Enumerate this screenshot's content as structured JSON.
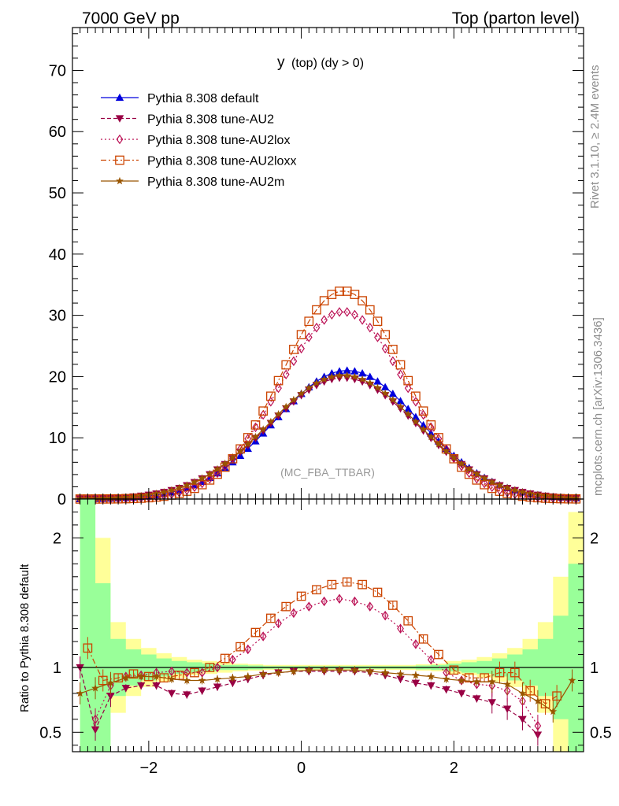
{
  "header": {
    "left": "7000 GeV pp",
    "right": "Top (parton level)"
  },
  "side_labels": {
    "rivet": "Rivet 3.1.10, ≥ 2.4M events",
    "mcplots": "mcplots.cern.ch [arXiv:1306.3436]"
  },
  "chart_data": [
    {
      "type": "line",
      "title_main": "y",
      "title_rest": "(top) (dy > 0)",
      "watermark": "(MC_FBA_TTBAR)",
      "xlim": [
        -3.0,
        3.7
      ],
      "ylim": [
        0,
        77
      ],
      "yticks": [
        0,
        10,
        20,
        30,
        40,
        50,
        60,
        70
      ],
      "xticks": [
        -2,
        0,
        2
      ],
      "legend_position": "top-left",
      "series": [
        {
          "name": "Pythia 8.308 default",
          "color": "#0000dd",
          "marker": "triangle-up",
          "dash": "solid",
          "peak": 21.0,
          "center": 0.6,
          "sigma": 0.95
        },
        {
          "name": "Pythia 8.308 tune-AU2",
          "color": "#990044",
          "marker": "triangle-down",
          "dash": "dashed",
          "peak": 19.8,
          "center": 0.55,
          "sigma": 0.98
        },
        {
          "name": "Pythia 8.308 tune-AU2lox",
          "color": "#bb1155",
          "marker": "diamond-open",
          "dash": "dotted",
          "peak": 30.6,
          "center": 0.55,
          "sigma": 0.83
        },
        {
          "name": "Pythia 8.308 tune-AU2loxx",
          "color": "#cc4400",
          "marker": "square-open",
          "dash": "dashdot",
          "peak": 34.0,
          "center": 0.55,
          "sigma": 0.8
        },
        {
          "name": "Pythia 8.308 tune-AU2m",
          "color": "#995500",
          "marker": "star",
          "dash": "solid",
          "peak": 20.2,
          "center": 0.55,
          "sigma": 0.98
        }
      ]
    },
    {
      "type": "line",
      "ylabel": "Ratio to Pythia 8.308 default",
      "xlim": [
        -3.0,
        3.7
      ],
      "ylim": [
        0.35,
        2.3
      ],
      "yticks": [
        0.5,
        1,
        2
      ],
      "xticks": [
        -2,
        0,
        2
      ],
      "reference": 1.0,
      "ratio_series": [
        {
          "name": "Pythia 8.308 tune-AU2",
          "color": "#990044",
          "marker": "triangle-down",
          "x": [
            -2.9,
            -2.7,
            -2.5,
            -2.3,
            -2.1,
            -1.9,
            -1.7,
            -1.5,
            -1.3,
            -1.1,
            -0.9,
            -0.7,
            -0.5,
            -0.3,
            -0.1,
            0.1,
            0.3,
            0.5,
            0.7,
            0.9,
            1.1,
            1.3,
            1.5,
            1.7,
            1.9,
            2.1,
            2.3,
            2.5,
            2.7,
            2.9,
            3.1
          ],
          "y": [
            1.0,
            0.52,
            0.78,
            0.84,
            0.86,
            0.86,
            0.8,
            0.79,
            0.82,
            0.85,
            0.88,
            0.91,
            0.94,
            0.96,
            0.97,
            0.97,
            0.97,
            0.97,
            0.97,
            0.96,
            0.94,
            0.91,
            0.88,
            0.86,
            0.83,
            0.8,
            0.76,
            0.73,
            0.68,
            0.6,
            0.48
          ]
        },
        {
          "name": "Pythia 8.308 tune-AU2lox",
          "color": "#bb1155",
          "marker": "diamond-open",
          "x": [
            -2.7,
            -2.5,
            -2.3,
            -2.1,
            -1.9,
            -1.7,
            -1.5,
            -1.3,
            -1.1,
            -0.9,
            -0.7,
            -0.5,
            -0.3,
            -0.1,
            0.1,
            0.3,
            0.5,
            0.7,
            0.9,
            1.1,
            1.3,
            1.5,
            1.7,
            1.9,
            2.1,
            2.3,
            2.5,
            2.7,
            2.9,
            3.1
          ],
          "y": [
            0.6,
            0.86,
            0.93,
            0.94,
            0.96,
            0.97,
            0.96,
            0.96,
            1.0,
            1.06,
            1.14,
            1.24,
            1.34,
            1.42,
            1.47,
            1.51,
            1.53,
            1.51,
            1.47,
            1.4,
            1.3,
            1.18,
            1.06,
            0.96,
            0.9,
            0.87,
            0.86,
            0.82,
            0.74,
            0.55
          ]
        },
        {
          "name": "Pythia 8.308 tune-AU2loxx",
          "color": "#cc4400",
          "marker": "square-open",
          "x": [
            -2.8,
            -2.6,
            -2.4,
            -2.2,
            -2.0,
            -1.8,
            -1.6,
            -1.4,
            -1.2,
            -1.0,
            -0.8,
            -0.6,
            -0.4,
            -0.2,
            0.0,
            0.2,
            0.4,
            0.6,
            0.8,
            1.0,
            1.2,
            1.4,
            1.6,
            1.8,
            2.0,
            2.2,
            2.4,
            2.6,
            2.8,
            3.0,
            3.2,
            3.35
          ],
          "y": [
            1.15,
            0.9,
            0.92,
            0.95,
            0.93,
            0.92,
            0.94,
            0.96,
            1.0,
            1.07,
            1.16,
            1.27,
            1.38,
            1.47,
            1.55,
            1.6,
            1.64,
            1.66,
            1.64,
            1.58,
            1.48,
            1.36,
            1.22,
            1.1,
            0.98,
            0.92,
            0.92,
            0.96,
            0.96,
            0.82,
            0.72,
            0.78
          ]
        },
        {
          "name": "Pythia 8.308 tune-AU2m",
          "color": "#995500",
          "marker": "star",
          "x": [
            -2.9,
            -2.7,
            -2.5,
            -2.3,
            -2.1,
            -1.9,
            -1.7,
            -1.5,
            -1.3,
            -1.1,
            -0.9,
            -0.7,
            -0.5,
            -0.3,
            -0.1,
            0.1,
            0.3,
            0.5,
            0.7,
            0.9,
            1.1,
            1.3,
            1.5,
            1.7,
            1.9,
            2.1,
            2.3,
            2.5,
            2.7,
            2.9,
            3.1,
            3.3,
            3.55
          ],
          "y": [
            0.8,
            0.84,
            0.88,
            0.92,
            0.93,
            0.93,
            0.91,
            0.9,
            0.9,
            0.91,
            0.92,
            0.93,
            0.95,
            0.96,
            0.97,
            0.98,
            0.98,
            0.98,
            0.98,
            0.97,
            0.96,
            0.95,
            0.94,
            0.93,
            0.91,
            0.9,
            0.89,
            0.89,
            0.87,
            0.8,
            0.74,
            0.66,
            0.9
          ]
        }
      ],
      "band_x": [
        -2.9,
        -2.7,
        -2.5,
        -2.3,
        -2.1,
        -1.9,
        -1.7,
        -1.5,
        -1.3,
        -1.1,
        -0.9,
        -0.7,
        -0.5,
        0.5,
        1.5,
        1.7,
        1.9,
        2.1,
        2.3,
        2.5,
        2.7,
        2.9,
        3.1,
        3.3,
        3.5,
        3.7
      ],
      "band_green": [
        1.6,
        0.65,
        0.22,
        0.14,
        0.1,
        0.07,
        0.05,
        0.04,
        0.03,
        0.02,
        0.02,
        0.015,
        0.01,
        0.01,
        0.015,
        0.02,
        0.03,
        0.04,
        0.05,
        0.07,
        0.1,
        0.14,
        0.22,
        0.4,
        0.8,
        1.4
      ],
      "band_yellow": [
        2.0,
        1.0,
        0.35,
        0.22,
        0.15,
        0.11,
        0.08,
        0.06,
        0.05,
        0.04,
        0.03,
        0.025,
        0.02,
        0.02,
        0.025,
        0.03,
        0.05,
        0.06,
        0.08,
        0.11,
        0.15,
        0.22,
        0.35,
        0.7,
        1.2,
        2.0
      ]
    }
  ]
}
